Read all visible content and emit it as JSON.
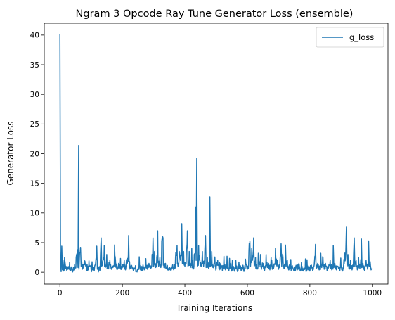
{
  "chart_data": {
    "type": "line",
    "title": "Ngram 3 Opcode Ray Tune Generator Loss (ensemble)",
    "xlabel": "Training Iterations",
    "ylabel": "Generator Loss",
    "xlim": [
      -50,
      1050
    ],
    "ylim": [
      -2,
      42
    ],
    "xticks": [
      0,
      200,
      400,
      600,
      800,
      1000
    ],
    "yticks": [
      0,
      5,
      10,
      15,
      20,
      25,
      30,
      35,
      40
    ],
    "grid": false,
    "legend": "top-right",
    "series": [
      {
        "name": "g_loss",
        "color": "#1f77b4",
        "keypoints": [
          [
            0,
            40.2
          ],
          [
            2,
            1.5
          ],
          [
            4,
            0.1
          ],
          [
            6,
            4.4
          ],
          [
            8,
            0.4
          ],
          [
            10,
            2.0
          ],
          [
            12,
            0.2
          ],
          [
            15,
            2.5
          ],
          [
            18,
            1.0
          ],
          [
            22,
            0.3
          ],
          [
            30,
            0.5
          ],
          [
            40,
            0.3
          ],
          [
            48,
            0.6
          ],
          [
            52,
            2.5
          ],
          [
            56,
            3.8
          ],
          [
            58,
            0.8
          ],
          [
            60,
            21.4
          ],
          [
            61,
            0.5
          ],
          [
            63,
            3.2
          ],
          [
            66,
            4.2
          ],
          [
            68,
            1.0
          ],
          [
            72,
            0.5
          ],
          [
            78,
            2.0
          ],
          [
            82,
            1.2
          ],
          [
            86,
            0.3
          ],
          [
            92,
            0.8
          ],
          [
            100,
            0.4
          ],
          [
            110,
            0.3
          ],
          [
            115,
            2.0
          ],
          [
            118,
            4.4
          ],
          [
            120,
            0.5
          ],
          [
            124,
            0.2
          ],
          [
            130,
            3.0
          ],
          [
            132,
            5.8
          ],
          [
            134,
            1.0
          ],
          [
            138,
            2.0
          ],
          [
            142,
            4.5
          ],
          [
            145,
            0.8
          ],
          [
            150,
            3.0
          ],
          [
            155,
            0.6
          ],
          [
            160,
            2.0
          ],
          [
            165,
            0.5
          ],
          [
            170,
            0.8
          ],
          [
            175,
            4.6
          ],
          [
            178,
            2.0
          ],
          [
            182,
            0.5
          ],
          [
            188,
            1.5
          ],
          [
            195,
            0.5
          ],
          [
            200,
            0.8
          ],
          [
            205,
            1.2
          ],
          [
            210,
            0.4
          ],
          [
            215,
            1.5
          ],
          [
            220,
            6.2
          ],
          [
            222,
            0.5
          ],
          [
            228,
            1.2
          ],
          [
            235,
            0.3
          ],
          [
            240,
            0.6
          ],
          [
            245,
            0.2
          ],
          [
            250,
            0.5
          ],
          [
            255,
            1.0
          ],
          [
            260,
            0.3
          ],
          [
            265,
            0.8
          ],
          [
            270,
            0.4
          ],
          [
            275,
            2.3
          ],
          [
            280,
            0.5
          ],
          [
            285,
            1.5
          ],
          [
            290,
            0.6
          ],
          [
            295,
            3.0
          ],
          [
            298,
            5.8
          ],
          [
            300,
            1.0
          ],
          [
            303,
            3.5
          ],
          [
            306,
            0.8
          ],
          [
            310,
            2.5
          ],
          [
            313,
            7.0
          ],
          [
            316,
            1.0
          ],
          [
            320,
            2.5
          ],
          [
            323,
            0.8
          ],
          [
            326,
            5.2
          ],
          [
            330,
            5.8
          ],
          [
            333,
            0.8
          ],
          [
            338,
            1.5
          ],
          [
            345,
            0.4
          ],
          [
            350,
            0.8
          ],
          [
            355,
            0.3
          ],
          [
            360,
            1.0
          ],
          [
            365,
            0.5
          ],
          [
            370,
            2.5
          ],
          [
            375,
            4.5
          ],
          [
            378,
            1.0
          ],
          [
            382,
            3.5
          ],
          [
            386,
            2.0
          ],
          [
            390,
            8.2
          ],
          [
            392,
            1.5
          ],
          [
            396,
            3.5
          ],
          [
            400,
            1.0
          ],
          [
            405,
            4.0
          ],
          [
            408,
            7.0
          ],
          [
            410,
            1.0
          ],
          [
            414,
            3.5
          ],
          [
            418,
            0.8
          ],
          [
            422,
            4.0
          ],
          [
            426,
            0.5
          ],
          [
            430,
            3.0
          ],
          [
            434,
            11.0
          ],
          [
            436,
            2.0
          ],
          [
            438,
            19.2
          ],
          [
            440,
            1.0
          ],
          [
            444,
            4.5
          ],
          [
            448,
            2.0
          ],
          [
            452,
            1.0
          ],
          [
            456,
            3.5
          ],
          [
            460,
            1.0
          ],
          [
            464,
            4.0
          ],
          [
            466,
            6.2
          ],
          [
            468,
            0.8
          ],
          [
            472,
            2.5
          ],
          [
            476,
            0.6
          ],
          [
            480,
            12.7
          ],
          [
            482,
            1.0
          ],
          [
            486,
            3.5
          ],
          [
            490,
            0.8
          ],
          [
            495,
            1.5
          ],
          [
            500,
            0.5
          ],
          [
            505,
            2.0
          ],
          [
            510,
            0.4
          ],
          [
            515,
            1.5
          ],
          [
            520,
            0.3
          ],
          [
            525,
            2.7
          ],
          [
            530,
            0.4
          ],
          [
            535,
            2.7
          ],
          [
            540,
            0.3
          ],
          [
            545,
            0.8
          ],
          [
            550,
            0.2
          ],
          [
            555,
            1.0
          ],
          [
            560,
            0.3
          ],
          [
            565,
            0.6
          ],
          [
            570,
            0.2
          ],
          [
            575,
            1.2
          ],
          [
            580,
            0.3
          ],
          [
            585,
            0.8
          ],
          [
            590,
            0.4
          ],
          [
            595,
            1.5
          ],
          [
            600,
            0.5
          ],
          [
            605,
            3.5
          ],
          [
            608,
            5.2
          ],
          [
            610,
            1.0
          ],
          [
            614,
            4.0
          ],
          [
            616,
            2.0
          ],
          [
            620,
            5.8
          ],
          [
            622,
            1.0
          ],
          [
            626,
            2.5
          ],
          [
            630,
            0.5
          ],
          [
            635,
            3.2
          ],
          [
            638,
            1.0
          ],
          [
            642,
            3.0
          ],
          [
            645,
            0.5
          ],
          [
            650,
            1.5
          ],
          [
            655,
            0.3
          ],
          [
            660,
            3.0
          ],
          [
            664,
            0.8
          ],
          [
            668,
            1.5
          ],
          [
            672,
            0.4
          ],
          [
            676,
            2.5
          ],
          [
            680,
            0.5
          ],
          [
            685,
            1.0
          ],
          [
            690,
            4.0
          ],
          [
            692,
            1.0
          ],
          [
            696,
            2.0
          ],
          [
            700,
            0.5
          ],
          [
            705,
            2.5
          ],
          [
            708,
            4.8
          ],
          [
            710,
            1.0
          ],
          [
            714,
            2.5
          ],
          [
            718,
            0.6
          ],
          [
            722,
            4.6
          ],
          [
            724,
            1.0
          ],
          [
            728,
            2.0
          ],
          [
            732,
            0.4
          ],
          [
            736,
            1.0
          ],
          [
            740,
            0.3
          ],
          [
            745,
            0.8
          ],
          [
            750,
            0.2
          ],
          [
            755,
            1.0
          ],
          [
            760,
            0.4
          ],
          [
            765,
            1.5
          ],
          [
            770,
            0.3
          ],
          [
            775,
            1.0
          ],
          [
            780,
            0.2
          ],
          [
            785,
            0.6
          ],
          [
            790,
            0.3
          ],
          [
            795,
            0.8
          ],
          [
            800,
            0.2
          ],
          [
            805,
            1.2
          ],
          [
            810,
            0.4
          ],
          [
            815,
            2.0
          ],
          [
            818,
            4.7
          ],
          [
            820,
            0.8
          ],
          [
            825,
            1.5
          ],
          [
            830,
            0.4
          ],
          [
            835,
            3.2
          ],
          [
            838,
            0.8
          ],
          [
            842,
            2.5
          ],
          [
            846,
            0.5
          ],
          [
            850,
            1.5
          ],
          [
            855,
            0.3
          ],
          [
            860,
            0.8
          ],
          [
            865,
            2.0
          ],
          [
            870,
            0.4
          ],
          [
            875,
            4.5
          ],
          [
            877,
            0.8
          ],
          [
            880,
            1.5
          ],
          [
            885,
            0.4
          ],
          [
            890,
            1.0
          ],
          [
            895,
            0.3
          ],
          [
            900,
            0.8
          ],
          [
            905,
            0.2
          ],
          [
            910,
            1.5
          ],
          [
            915,
            3.5
          ],
          [
            917,
            7.6
          ],
          [
            919,
            1.0
          ],
          [
            922,
            3.0
          ],
          [
            926,
            0.5
          ],
          [
            930,
            2.0
          ],
          [
            935,
            0.4
          ],
          [
            940,
            3.0
          ],
          [
            942,
            5.8
          ],
          [
            944,
            1.0
          ],
          [
            948,
            2.0
          ],
          [
            952,
            0.4
          ],
          [
            956,
            2.5
          ],
          [
            960,
            0.6
          ],
          [
            965,
            5.6
          ],
          [
            967,
            0.8
          ],
          [
            970,
            1.5
          ],
          [
            975,
            0.3
          ],
          [
            980,
            2.0
          ],
          [
            985,
            0.5
          ],
          [
            988,
            5.3
          ],
          [
            990,
            1.0
          ],
          [
            993,
            1.8
          ],
          [
            996,
            0.4
          ],
          [
            999,
            0.6
          ]
        ]
      }
    ]
  }
}
